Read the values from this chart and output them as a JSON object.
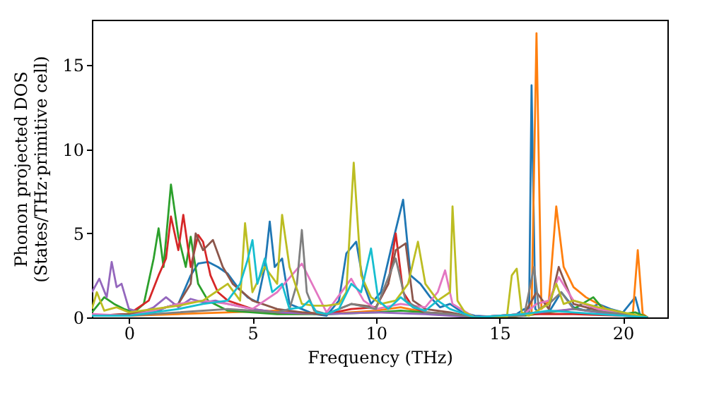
{
  "chart_data": {
    "type": "line",
    "xlabel": "Frequency (THz)",
    "ylabel": "Phonon projected DOS\n(States/THz·primitive cell)",
    "xlim": [
      -1.5,
      21.8
    ],
    "ylim": [
      0,
      17.7
    ],
    "xticks": [
      0,
      5,
      10,
      15,
      20
    ],
    "yticks": [
      0,
      5,
      10,
      15
    ],
    "grid": false,
    "series": [
      {
        "color": "#1f77b4",
        "x": [
          -1.5,
          -1,
          0,
          1,
          1.5,
          2,
          2.5,
          2.8,
          3.2,
          3.6,
          4,
          4.4,
          4.8,
          5.2,
          5.5,
          5.7,
          5.9,
          6.2,
          6.5,
          7,
          7.5,
          8,
          8.5,
          8.8,
          9.2,
          9.5,
          9.8,
          10.2,
          10.6,
          11.1,
          11.4,
          11.8,
          12.2,
          12.6,
          13,
          13.5,
          14,
          15.5,
          16,
          16.2,
          16.3,
          16.45,
          16.6,
          17,
          17.5,
          18,
          18.5,
          19,
          19.5,
          20,
          20.5,
          20.7,
          21
        ],
        "values": [
          0.1,
          0.1,
          0.2,
          0.3,
          0.6,
          0.8,
          2.5,
          3.2,
          3.3,
          3.0,
          2.6,
          1.8,
          1.2,
          0.9,
          3.0,
          5.7,
          3.0,
          3.5,
          0.8,
          0.5,
          0.2,
          0.1,
          1.0,
          3.8,
          4.5,
          2.0,
          0.8,
          1.5,
          4.0,
          7.0,
          2.5,
          2.0,
          1.2,
          0.6,
          0.8,
          0.3,
          0.1,
          0,
          0.5,
          0.3,
          13.8,
          0.5,
          0.3,
          0.3,
          1.5,
          0.6,
          0.4,
          0.8,
          0.5,
          0.3,
          1.2,
          0.1,
          0
        ]
      },
      {
        "color": "#ff7f0e",
        "x": [
          -1.5,
          0,
          2,
          4,
          6,
          8,
          10,
          11,
          12,
          13,
          14,
          15.5,
          16.3,
          16.5,
          16.7,
          17,
          17.3,
          17.6,
          18,
          18.5,
          19,
          19.5,
          20,
          20.4,
          20.6,
          20.8,
          21
        ],
        "values": [
          0.1,
          0.1,
          0.2,
          0.3,
          0.4,
          0.2,
          0.4,
          0.6,
          0.3,
          0.2,
          0,
          0,
          0.3,
          16.9,
          0.5,
          1.0,
          6.6,
          3.0,
          1.8,
          1.2,
          0.8,
          0.3,
          0.2,
          0.2,
          4.0,
          0.2,
          0
        ]
      },
      {
        "color": "#2ca02c",
        "x": [
          -1.5,
          -1,
          -0.6,
          -0.2,
          0.2,
          0.6,
          1,
          1.2,
          1.4,
          1.7,
          2,
          2.3,
          2.5,
          2.8,
          3.2,
          4,
          5,
          6,
          8,
          10,
          11,
          12,
          13,
          14,
          16,
          17,
          18,
          18.8,
          19.2,
          20,
          20.5,
          21
        ],
        "values": [
          0.3,
          1.2,
          0.8,
          0.5,
          0.3,
          0.8,
          3.5,
          5.3,
          3.0,
          7.9,
          4.8,
          3.0,
          4.8,
          2.0,
          1.0,
          0.4,
          0.3,
          0.2,
          0.2,
          0.3,
          0.4,
          0.3,
          0.2,
          0,
          0.1,
          0.3,
          0.5,
          1.2,
          0.5,
          0.2,
          0.3,
          0
        ]
      },
      {
        "color": "#d62728",
        "x": [
          -1.5,
          0,
          0.8,
          1.2,
          1.5,
          1.7,
          2,
          2.2,
          2.5,
          2.8,
          3.0,
          3.3,
          3.6,
          4,
          5,
          6,
          8,
          9,
          10,
          10.5,
          10.8,
          11.1,
          11.5,
          12,
          13,
          14,
          16,
          18,
          20,
          21
        ],
        "values": [
          0.1,
          0.2,
          1.0,
          2.5,
          3.5,
          6.0,
          4.0,
          6.1,
          3.0,
          4.9,
          4.5,
          2.5,
          1.5,
          1.0,
          0.5,
          0.3,
          0.2,
          0.5,
          0.6,
          2.0,
          5.0,
          1.5,
          0.6,
          0.3,
          0.2,
          0,
          0.2,
          0.2,
          0.1,
          0
        ]
      },
      {
        "color": "#9467bd",
        "x": [
          -1.5,
          -1.2,
          -0.9,
          -0.7,
          -0.5,
          -0.3,
          0,
          0.5,
          1,
          1.5,
          2,
          2.5,
          3,
          3.5,
          4,
          5,
          6,
          8,
          10,
          12,
          14,
          16,
          18,
          20,
          21
        ],
        "values": [
          1.5,
          2.3,
          1.2,
          3.3,
          1.8,
          2.0,
          0.5,
          0.3,
          0.6,
          1.2,
          0.6,
          1.1,
          0.9,
          1.0,
          0.8,
          0.5,
          0.3,
          0.2,
          0.3,
          0.2,
          0,
          0.2,
          0.5,
          0.1,
          0
        ]
      },
      {
        "color": "#8c564b",
        "x": [
          -1.5,
          0,
          1,
          2,
          2.5,
          2.7,
          3,
          3.4,
          3.8,
          4.2,
          5,
          6,
          7,
          8,
          9,
          10,
          10.5,
          10.8,
          11.2,
          11.5,
          12,
          13,
          14,
          16,
          16.5,
          17,
          17.4,
          18,
          19,
          20,
          21
        ],
        "values": [
          0.1,
          0.2,
          0.4,
          0.8,
          2.0,
          5.0,
          4.0,
          4.6,
          3.0,
          2.0,
          1.0,
          0.5,
          0.3,
          0.2,
          0.8,
          0.6,
          2.0,
          4.0,
          4.4,
          1.0,
          0.5,
          0.3,
          0,
          0.2,
          1.5,
          0.5,
          3.0,
          0.8,
          0.4,
          0.2,
          0
        ]
      },
      {
        "color": "#e377c2",
        "x": [
          -1.5,
          0,
          1,
          2,
          3,
          4,
          5,
          6,
          7,
          8,
          9,
          9.5,
          10,
          11,
          12,
          12.5,
          12.8,
          13.1,
          14,
          16,
          16.5,
          17,
          17.4,
          18,
          19,
          20,
          21
        ],
        "values": [
          0.2,
          0.1,
          0.4,
          0.8,
          1.0,
          0.8,
          0.5,
          1.5,
          3.2,
          0.3,
          2.3,
          1.0,
          0.5,
          0.8,
          0.6,
          1.5,
          2.8,
          0.8,
          0,
          0.2,
          0.8,
          1.0,
          2.4,
          1.0,
          0.5,
          0.2,
          0
        ]
      },
      {
        "color": "#7f7f7f",
        "x": [
          -1.5,
          0,
          2,
          4,
          5,
          6,
          6.5,
          6.8,
          7.0,
          7.2,
          7.5,
          8,
          9,
          10,
          10.8,
          11.2,
          12,
          13,
          14,
          16,
          16.4,
          16.6,
          17,
          17.5,
          18,
          20,
          21
        ],
        "values": [
          0.1,
          0.1,
          0.3,
          0.5,
          0.4,
          0.3,
          0.5,
          2.0,
          5.2,
          1.5,
          0.4,
          0.2,
          0.8,
          0.5,
          3.5,
          1.0,
          0.3,
          0.2,
          0,
          0.1,
          3.0,
          0.5,
          0.8,
          1.5,
          0.5,
          0.2,
          0
        ]
      },
      {
        "color": "#bcbd22",
        "x": [
          -1.5,
          -1.3,
          -1,
          -0.5,
          0,
          1,
          2,
          3,
          3.5,
          4,
          4.5,
          4.7,
          5,
          5.5,
          6,
          6.2,
          6.5,
          7,
          7.5,
          8,
          8.5,
          8.8,
          9.1,
          9.4,
          9.8,
          10.2,
          10.8,
          11.3,
          11.7,
          12,
          12.5,
          13,
          13.1,
          13.3,
          13.6,
          14,
          15.3,
          15.5,
          15.7,
          15.9,
          16.2,
          17,
          17.3,
          17.6,
          18,
          19,
          20,
          21
        ],
        "values": [
          0.5,
          1.5,
          0.4,
          0.6,
          0.3,
          0.5,
          0.7,
          1.0,
          1.5,
          2.0,
          1.0,
          5.6,
          1.5,
          3.0,
          2.0,
          6.1,
          3.0,
          0.8,
          0.7,
          0.7,
          0.8,
          1.5,
          9.2,
          2.5,
          1.2,
          0.8,
          1.0,
          2.0,
          4.5,
          2.0,
          1.0,
          1.5,
          6.6,
          1.0,
          0.3,
          0,
          0,
          2.5,
          2.9,
          0.3,
          0.1,
          0.8,
          2.0,
          0.8,
          1.0,
          0.6,
          0.3,
          0
        ]
      },
      {
        "color": "#17becf",
        "x": [
          -1.5,
          0,
          2,
          3,
          4,
          4.5,
          4.8,
          5.0,
          5.2,
          5.5,
          5.8,
          6.2,
          6.5,
          7,
          7.3,
          7.6,
          8,
          8.5,
          9,
          9.4,
          9.8,
          10.1,
          10.5,
          11,
          11.5,
          12,
          12.5,
          13,
          14,
          16,
          17,
          18,
          20,
          21
        ],
        "values": [
          0.1,
          0.1,
          0.5,
          0.8,
          1.0,
          2.0,
          3.4,
          4.6,
          2.0,
          3.5,
          1.5,
          2.0,
          0.5,
          0.6,
          1.0,
          0.3,
          0.2,
          0.5,
          2.0,
          1.5,
          4.1,
          1.0,
          0.5,
          1.2,
          0.6,
          0.4,
          1.0,
          0.5,
          0,
          0.2,
          0.4,
          0.3,
          0.1,
          0
        ]
      }
    ]
  }
}
